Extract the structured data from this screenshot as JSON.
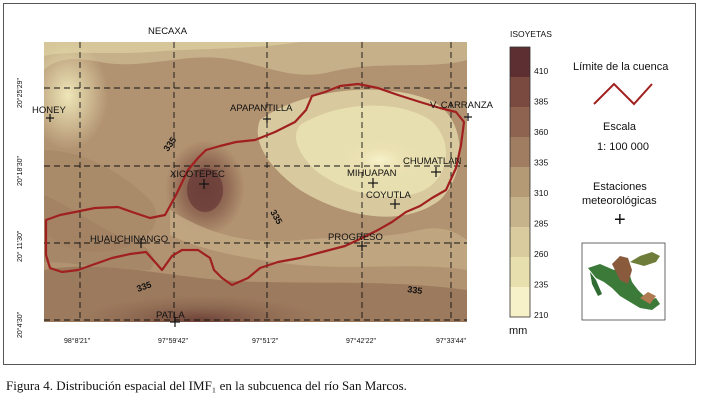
{
  "map": {
    "stations": [
      {
        "name": "NECAXA"
      },
      {
        "name": "HONEY"
      },
      {
        "name": "APAPANTILLA"
      },
      {
        "name": "V. CARRANZA"
      },
      {
        "name": "XICOTEPEC"
      },
      {
        "name": "MIHUAPAN"
      },
      {
        "name": "CHUMATLAN"
      },
      {
        "name": "COYUTLA"
      },
      {
        "name": "HUAUCHINANGO"
      },
      {
        "name": "PROGRESO"
      },
      {
        "name": "PATLA"
      }
    ],
    "isolines": [
      "335",
      "335",
      "335",
      "335"
    ],
    "lat_ticks": [
      "20°25'29\"",
      "20°18'30\"",
      "20° 11'30\"",
      "20°4'30\""
    ],
    "lon_ticks": [
      "98°8'21\"",
      "97°59'42\"",
      "97°51'2\"",
      "97°42'22\"",
      "97°33'44\""
    ]
  },
  "legend": {
    "title": "ISOYETAS",
    "unit": "mm",
    "values": [
      "410",
      "385",
      "360",
      "335",
      "310",
      "285",
      "260",
      "235",
      "210"
    ],
    "colors": [
      "#5e2f32",
      "#7a4a41",
      "#8e6450",
      "#a07d60",
      "#b59a76",
      "#c7b38b",
      "#d9cb9d",
      "#e8dfaf",
      "#f6f1c9"
    ]
  },
  "side": {
    "basin_limit": "Límite de la cuenca",
    "scale_title": "Escala",
    "scale_value": "1: 100 000",
    "stations_title_1": "Estaciones",
    "stations_title_2": "meteorológicas",
    "station_symbol": "+",
    "basin_color": "#a02020"
  },
  "caption": "Figura 4. Distribución espacial del IMF₁ en la subcuenca del río San Marcos."
}
